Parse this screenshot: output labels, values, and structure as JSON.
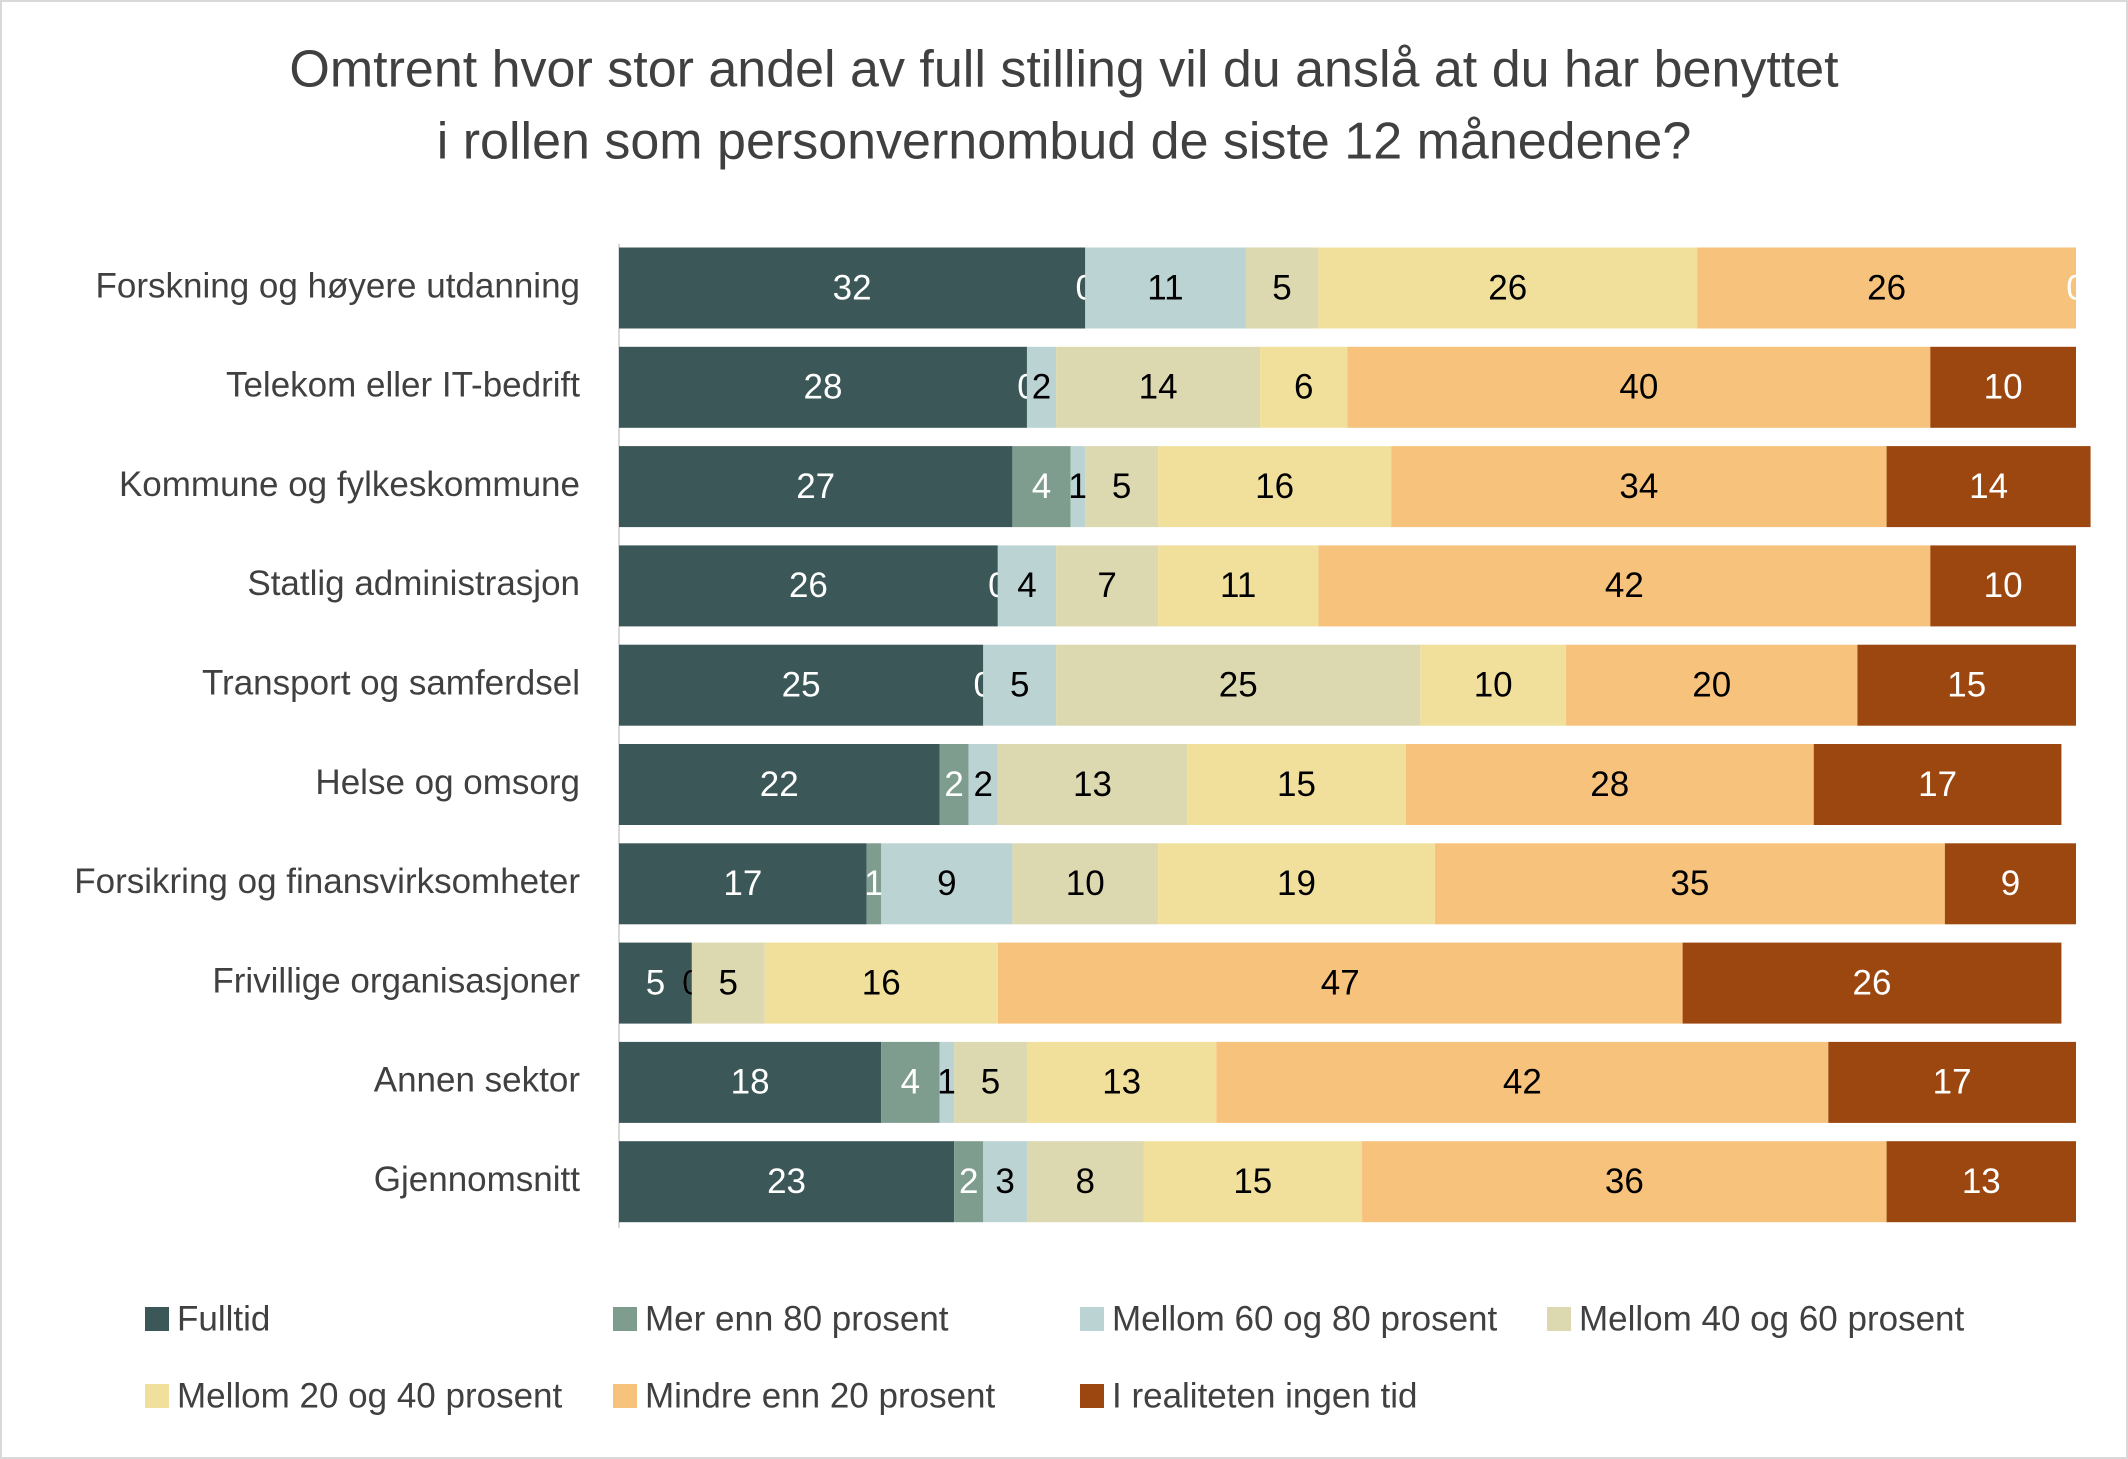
{
  "chart_data": {
    "type": "stacked-bar-horizontal",
    "title": [
      "Omtrent hvor stor andel av full stilling vil du anslå at du har benyttet",
      "i rollen som personvernombud de siste 12 månedene?"
    ],
    "categories": [
      "Forskning og høyere utdanning",
      "Telekom eller IT-bedrift",
      "Kommune og fylkeskommune",
      "Statlig administrasjon",
      "Transport og samferdsel",
      "Helse og omsorg",
      "Forsikring og finansvirksomheter",
      "Frivillige organisasjoner",
      "Annen sektor",
      "Gjennomsnitt"
    ],
    "xlim": [
      0,
      100
    ],
    "series": [
      {
        "name": "Fulltid",
        "color": "#3b5757",
        "values": [
          32,
          28,
          27,
          26,
          25,
          22,
          17,
          5,
          18,
          23
        ]
      },
      {
        "name": "Mer enn 80 prosent",
        "color": "#7f9d8e",
        "values": [
          0,
          0,
          4,
          0,
          0,
          2,
          1,
          0,
          4,
          2
        ]
      },
      {
        "name": "Mellom 60 og 80 prosent",
        "color": "#bcd3d4",
        "values": [
          11,
          2,
          1,
          4,
          5,
          2,
          9,
          0,
          1,
          3
        ]
      },
      {
        "name": "Mellom 40 og 60 prosent",
        "color": "#dcd9b0",
        "values": [
          5,
          14,
          5,
          7,
          25,
          13,
          10,
          5,
          5,
          8
        ]
      },
      {
        "name": "Mellom 20 og 40 prosent",
        "color": "#f1e09c",
        "values": [
          26,
          6,
          16,
          11,
          10,
          15,
          19,
          16,
          13,
          15
        ]
      },
      {
        "name": "Mindre enn 20 prosent",
        "color": "#f7c27c",
        "values": [
          26,
          40,
          34,
          42,
          20,
          28,
          35,
          47,
          42,
          36
        ]
      },
      {
        "name": "I realiteten ingen tid",
        "color": "#9c470f",
        "values": [
          0,
          10,
          14,
          10,
          15,
          17,
          9,
          26,
          17,
          13
        ]
      }
    ]
  }
}
